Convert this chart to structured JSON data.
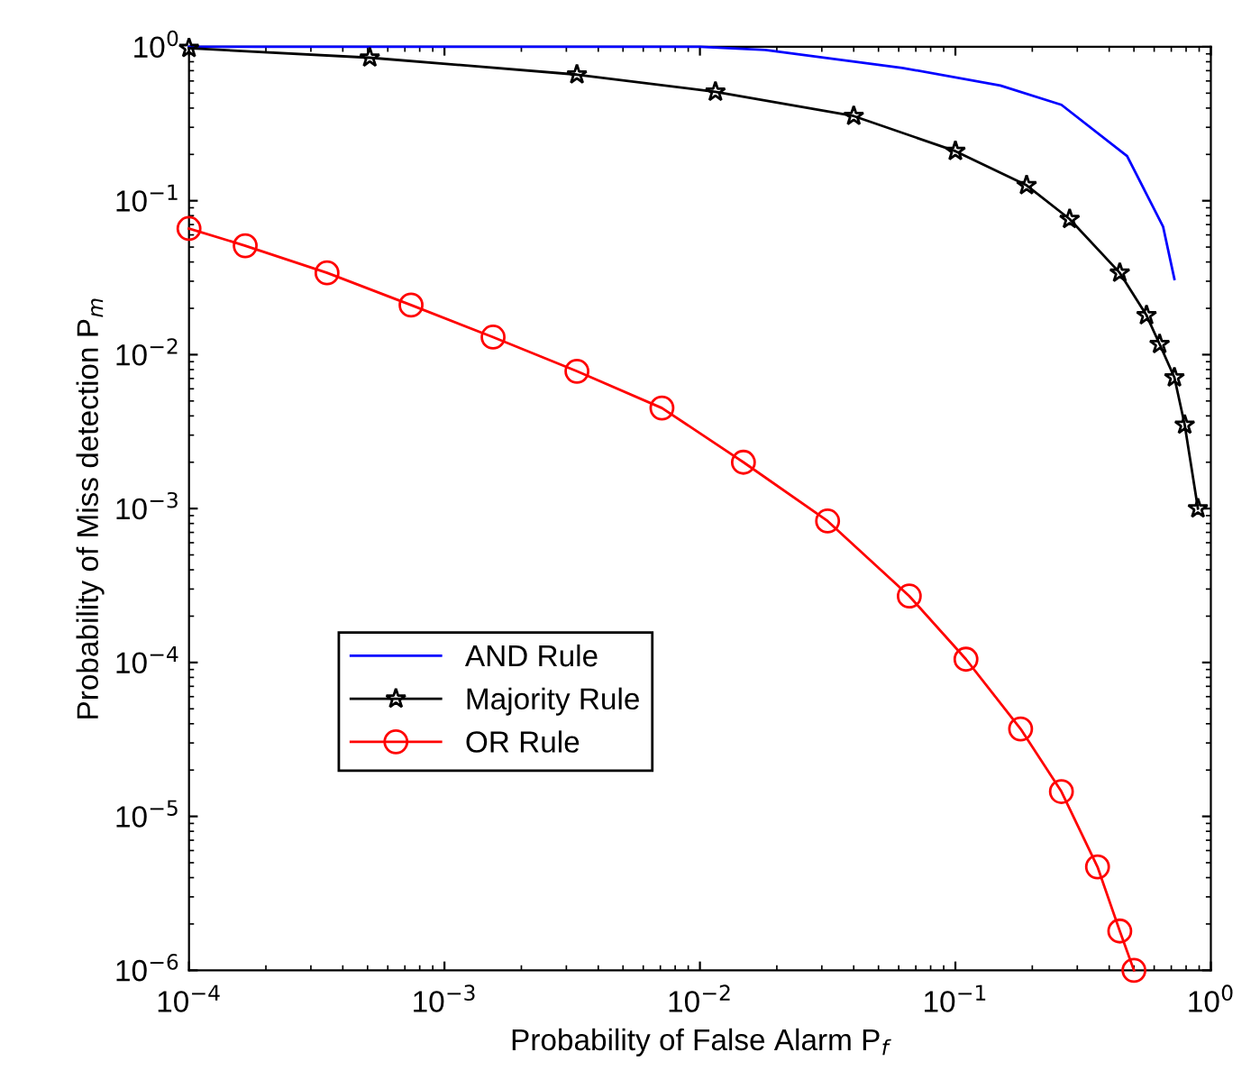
{
  "chart_data": {
    "type": "line",
    "xlabel": "Probability of False Alarm P$_{f}$",
    "ylabel": "Probability of Miss detection P$_{m}$",
    "log": "xy",
    "grid": false,
    "legend": "bottom left",
    "line_style": "solid",
    "xlim": [
      0.0001,
      1
    ],
    "ylim": [
      1e-06,
      1
    ],
    "xticks": [
      {
        "value": 0.0001,
        "label": "10$^{−4}$"
      },
      {
        "value": 0.001,
        "label": "10$^{−3}$"
      },
      {
        "value": 0.01,
        "label": "10$^{−2}$"
      },
      {
        "value": 0.1,
        "label": "10$^{−1}$"
      },
      {
        "value": 1,
        "label": "10$^{0}$"
      }
    ],
    "yticks": [
      {
        "value": 1e-06,
        "label": "10$^{−6}$"
      },
      {
        "value": 1e-05,
        "label": "10$^{−5}$"
      },
      {
        "value": 0.0001,
        "label": "10$^{−4}$"
      },
      {
        "value": 0.001,
        "label": "10$^{−3}$"
      },
      {
        "value": 0.01,
        "label": "10$^{−2}$"
      },
      {
        "value": 0.1,
        "label": "10$^{−1}$"
      },
      {
        "value": 1,
        "label": "10$^{0}$"
      }
    ],
    "series": [
      {
        "name": "AND Rule",
        "color": "#0000ff",
        "marker": "none",
        "x": [
          0.0001,
          0.001,
          0.01,
          0.018,
          0.062,
          0.15,
          0.26,
          0.47,
          0.65,
          0.72
        ],
        "values": [
          1.0,
          1.0,
          1.0,
          0.955,
          0.73,
          0.56,
          0.42,
          0.195,
          0.068,
          0.031
        ]
      },
      {
        "name": "Majority Rule",
        "color": "#000000",
        "marker": "star",
        "x": [
          0.0001,
          0.00051,
          0.0033,
          0.0115,
          0.04,
          0.1,
          0.19,
          0.28,
          0.44,
          0.56,
          0.63,
          0.72,
          0.79,
          0.89
        ],
        "values": [
          0.98,
          0.85,
          0.66,
          0.51,
          0.355,
          0.21,
          0.126,
          0.076,
          0.034,
          0.018,
          0.0117,
          0.0071,
          0.0035,
          0.001
        ]
      },
      {
        "name": "OR Rule",
        "color": "#ff0000",
        "marker": "circle",
        "x": [
          0.0001,
          0.000166,
          0.000347,
          0.00074,
          0.00155,
          0.0033,
          0.0071,
          0.0148,
          0.0316,
          0.066,
          0.11,
          0.18,
          0.26,
          0.36,
          0.44,
          0.5
        ],
        "values": [
          0.066,
          0.051,
          0.034,
          0.021,
          0.013,
          0.0078,
          0.0045,
          0.002,
          0.00083,
          0.00027,
          0.000105,
          3.7e-05,
          1.45e-05,
          4.7e-06,
          1.8e-06,
          1e-06
        ]
      }
    ]
  }
}
